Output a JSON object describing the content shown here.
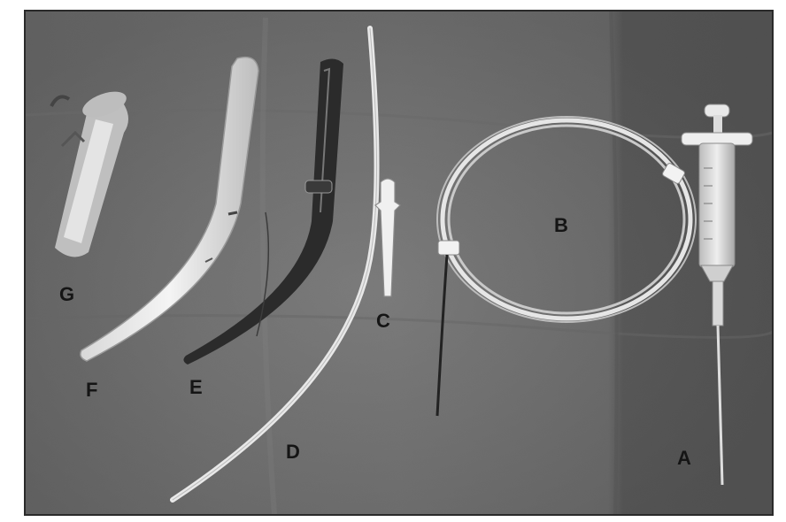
{
  "labels": {
    "a": "A",
    "b": "B",
    "c": "C",
    "d": "D",
    "e": "E",
    "f": "F",
    "g": "G"
  }
}
